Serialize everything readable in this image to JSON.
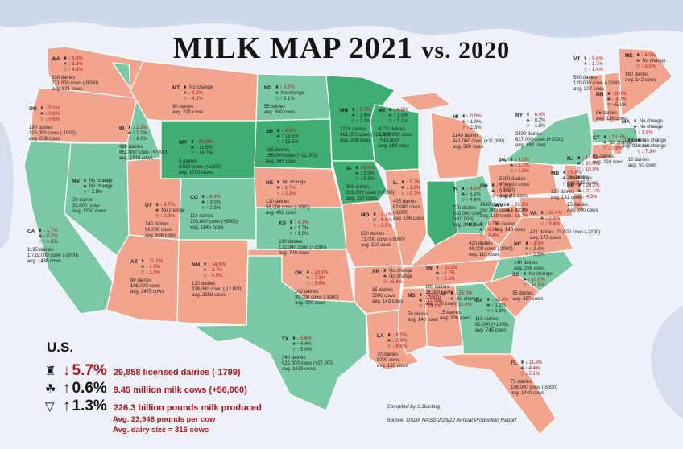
{
  "title": "MILK MAP 2021",
  "title_vs": "vs. 2020",
  "colors": {
    "decrease": "#f2a58e",
    "increase": "#7ac9a4",
    "increase_strong": "#3fad74",
    "background": "#f2f5fa"
  },
  "icon_names": [
    "dairy-barn-icon",
    "cow-icon",
    "milk-jug-icon"
  ],
  "us": {
    "heading": "U.S.",
    "dairies_pct": "5.7%",
    "dairies_text": "29,858 licensed dairies (-1799)",
    "cows_pct": "0.6%",
    "cows_text": "9.45 million milk cows (+56,000)",
    "milk_pct": "1.3%",
    "milk_text": "226.3 billion pounds milk produced",
    "per_cow": "Avg. 23,948 pounds per cow",
    "dairy_size": "Avg. dairy size = 316 cows"
  },
  "credit": "Compiled by S.Bunting",
  "source": "Source: USDA NASS 2/23/22  Annual Production Report",
  "states": [
    {
      "abbr": "WA",
      "r": [
        "3.0%",
        "3.3%",
        "4.8%"
      ],
      "d": [
        "dn",
        "dn",
        "dn"
      ],
      "lines": [
        "330 dairies",
        "271,000 cows (-9000)",
        "avg. 821 cows"
      ]
    },
    {
      "abbr": "OR",
      "r": [
        "5.0%",
        "0.6%",
        "0.6%"
      ],
      "d": [
        "dn",
        "dn",
        "dn"
      ],
      "lines": [
        "190 dairies",
        "125,000 cows (-1000)",
        "avg. 658 cows"
      ]
    },
    {
      "abbr": "CA",
      "r": [
        "1.7%",
        "0.2%",
        "1.3%"
      ],
      "d": [
        "dn",
        "dn",
        "up"
      ],
      "lines": [
        "1195 dairies",
        "1,719,000 cows (-3000)",
        "avg. 1438 cows"
      ]
    },
    {
      "abbr": "NV",
      "r": [
        "No change",
        "No change",
        "2.8%"
      ],
      "d": [
        "up",
        "up",
        "up"
      ],
      "lines": [
        "20 dairies",
        "33,000 cows",
        "avg. 1550 cows"
      ]
    },
    {
      "abbr": "ID",
      "r": [
        "2.3%",
        "1.1%",
        "1.1%"
      ],
      "d": [
        "dn",
        "up",
        "up"
      ],
      "lines": [
        "430 dairies",
        "652,000 cows (+7000)",
        "avg. 1516 cows"
      ]
    },
    {
      "abbr": "MT",
      "r": [
        "No change",
        "6.3%",
        "4.3%"
      ],
      "d": [
        "up",
        "dn",
        "dn"
      ],
      "lines": [
        "90 dairies",
        "avg. 220 cows"
      ]
    },
    {
      "abbr": "WY",
      "r": [
        "50.0%",
        "11.8%",
        "16.7%"
      ],
      "d": [
        "dn",
        "up",
        "up"
      ],
      "lines": [
        "5 dairies",
        "8,500 cows (+1000)",
        "avg. 1700 cows"
      ]
    },
    {
      "abbr": "UT",
      "r": [
        "6.7%",
        "No change",
        "0.3%"
      ],
      "d": [
        "dn",
        "up",
        "dn"
      ],
      "lines": [
        "140 dairies",
        "96,000 cows",
        "avg. 686 cows"
      ]
    },
    {
      "abbr": "CO",
      "r": [
        "8.4%",
        "3.0%",
        "2.3%"
      ],
      "d": [
        "dn",
        "up",
        "up"
      ],
      "lines": [
        "110 dairies",
        "203,000 cows (+6000)",
        "avg. 1845 cows"
      ]
    },
    {
      "abbr": "AZ",
      "r": [
        "11.2%",
        "1.0%",
        "1.5%"
      ],
      "d": [
        "dn",
        "dn",
        "dn"
      ],
      "lines": [
        "80 dairies",
        "196,000 cows",
        "avg. 2475 cows"
      ]
    },
    {
      "abbr": "NM",
      "r": [
        "14.3%",
        "3.7%",
        "4.5%"
      ],
      "d": [
        "dn",
        "dn",
        "dn"
      ],
      "lines": [
        "120 dairies",
        "318,000 cows (-12,000)",
        "avg. 2650 cows"
      ]
    },
    {
      "abbr": "ND",
      "r": [
        "8.7%",
        "No change",
        "3.1%"
      ],
      "d": [
        "dn",
        "up",
        "up"
      ],
      "lines": [
        "55 dairies",
        "avg. 300 cows"
      ]
    },
    {
      "abbr": "SD",
      "r": [
        "8.3%",
        "13.5%",
        "15.5%"
      ],
      "d": [
        "dn",
        "up",
        "up"
      ],
      "lines": [
        "165 dairies",
        "156,000 cows (+21,000)",
        "avg. 945 cows"
      ]
    },
    {
      "abbr": "NE",
      "r": [
        "No change",
        "1.7%",
        "2.3%"
      ],
      "d": [
        "up",
        "dn",
        "dn"
      ],
      "lines": [
        "120 dairies",
        "58,000 cows (-1000)",
        "avg. 483 cows"
      ]
    },
    {
      "abbr": "KS",
      "r": [
        "4.2%",
        "1.2%",
        "1.9%"
      ],
      "d": [
        "dn",
        "up",
        "up"
      ],
      "lines": [
        "230 dairies",
        "172,000 cows (+2000)",
        "avg. 748 cows"
      ]
    },
    {
      "abbr": "OK",
      "r": [
        "23.1%",
        "7.2%",
        "5.6%"
      ],
      "d": [
        "dn",
        "dn",
        "dn"
      ],
      "lines": [
        "100 dairies",
        "39,000 cows (-3000)",
        "avg. 390 cows"
      ]
    },
    {
      "abbr": "TX",
      "r": [
        "5.6%",
        "4.4%",
        "5.0%"
      ],
      "d": [
        "dn",
        "up",
        "up"
      ],
      "lines": [
        "340 dairies",
        "622,000 cows (+27,000)",
        "avg. 1829 cows"
      ]
    },
    {
      "abbr": "MN",
      "r": [
        "5.7%",
        "2.6%",
        "3.7%"
      ],
      "d": [
        "dn",
        "up",
        "up"
      ],
      "lines": [
        "2215 dairies",
        "461,000 cows (+13,000)",
        "avg. 208 cows"
      ]
    },
    {
      "abbr": "IA",
      "r": [
        "8.0%",
        "3.5%",
        "3.1%"
      ],
      "d": [
        "dn",
        "up",
        "up"
      ],
      "lines": [
        "880 dairies",
        "226,000 cows (+8000)",
        "avg. 257 cows"
      ]
    },
    {
      "abbr": "MO",
      "r": [
        "9.7%",
        "6.6%",
        "6.9%"
      ],
      "d": [
        "dn",
        "dn",
        "dn"
      ],
      "lines": [
        "650 dairies",
        "71,000 cows (-5000)",
        "avg. 110 cows"
      ]
    },
    {
      "abbr": "AR",
      "r": [
        "No change",
        "No change",
        "6.3%"
      ],
      "d": [
        "up",
        "up",
        "dn"
      ],
      "lines": [
        "35 dairies",
        "5000 cows",
        "avg. 143 cows"
      ]
    },
    {
      "abbr": "LA",
      "r": [
        "6.7%",
        "0.9%",
        "6.6%"
      ],
      "d": [
        "dn",
        "dn",
        "dn"
      ],
      "lines": [
        "70 dairies",
        "9000 cows",
        "avg. 130 cows"
      ]
    },
    {
      "abbr": "WI",
      "r": [
        "4.8%",
        "1.2%",
        "3.1%"
      ],
      "d": [
        "dn",
        "up",
        "up"
      ],
      "lines": [
        "6770 dairies",
        "1,274,000 cows",
        "(+15,000)",
        "avg. 188 cows"
      ]
    },
    {
      "abbr": "IL",
      "r": [
        "5.7%",
        "1.2%",
        "0.7%"
      ],
      "d": [
        "dn",
        "dn",
        "dn"
      ],
      "lines": [
        "405 dairies",
        "82,000 cows",
        "(-1000)",
        "avg. 166 cows"
      ]
    },
    {
      "abbr": "MI",
      "r": [
        "5.0%",
        "1.0%",
        "2.3%"
      ],
      "d": [
        "dn",
        "up",
        "up"
      ],
      "lines": [
        "1140 dairies",
        "441,000 cows (+11,000)",
        "avg. 389 cows"
      ]
    },
    {
      "abbr": "IN",
      "r": [
        "4.3%",
        "5.2%",
        "4.6%"
      ],
      "d": [
        "dn",
        "up",
        "up"
      ],
      "lines": [
        "770 dairies",
        "192,000 cows",
        "(+10,000)",
        "avg. 249 cows"
      ]
    },
    {
      "abbr": "OH",
      "r": [
        "7.2%",
        "1.2%",
        "0.4%"
      ],
      "d": [
        "dn",
        "dn",
        "up"
      ],
      "lines": [
        "1620 dairies",
        "257,000 cows (-3000)",
        "avg. 159 cows"
      ]
    },
    {
      "abbr": "KY",
      "r": [
        "5.7%",
        "4.2%",
        "3.4%"
      ],
      "d": [
        "dn",
        "dn",
        "dn"
      ],
      "lines": [
        "420 dairies",
        "46,000 cows (-2000)",
        "avg. 110 cows"
      ]
    },
    {
      "abbr": "TN",
      "r": [
        "11.1%",
        "6.7%",
        "6.3%"
      ],
      "d": [
        "dn",
        "dn",
        "dn"
      ],
      "lines": [
        "160 dairies",
        "28,000 cows",
        "(-2000)",
        "avg. 175 cows"
      ]
    },
    {
      "abbr": "MS",
      "r": [
        "9.1%",
        "12.5%",
        "19.1%"
      ],
      "d": [
        "dn",
        "dn",
        "dn"
      ],
      "lines": [
        "50 dairies",
        "avg. 140 cows"
      ]
    },
    {
      "abbr": "AL",
      "r": [
        "25.0%",
        "No change",
        "11.4%"
      ],
      "d": [
        "dn",
        "up",
        "dn"
      ],
      "lines": [
        "15 dairies",
        "avg. 300 cows"
      ]
    },
    {
      "abbr": "GA",
      "r": [
        "15.4%",
        "1.2%",
        "1.8%"
      ],
      "d": [
        "dn",
        "up",
        "up"
      ],
      "lines": [
        "110 dairies",
        "82,000 (+1000)",
        "avg. 745 cows"
      ]
    },
    {
      "abbr": "FL",
      "r": [
        "11.8%",
        "4.4%",
        "5.1%"
      ],
      "d": [
        "dn",
        "dn",
        "dn"
      ],
      "lines": [
        "75 dairies",
        "108,000 cows (-5000)",
        "avg. 1440 cows"
      ]
    },
    {
      "abbr": "SC",
      "r": [
        "No change",
        "10.0%",
        "14.5%"
      ],
      "d": [
        "up",
        "dn",
        "dn"
      ],
      "lines": [
        "35 dairies",
        "avg. 257 cows"
      ]
    },
    {
      "abbr": "NC",
      "r": [
        "3.5%",
        "2.4%",
        "2.5%"
      ],
      "d": [
        "dn",
        "up",
        "up"
      ],
      "lines": [
        "140 dairies",
        "avg. 285 cows"
      ]
    },
    {
      "abbr": "VA",
      "r": [
        "11.4%",
        "2.3%",
        "3.4%"
      ],
      "d": [
        "dn",
        "dn",
        "dn"
      ],
      "lines": [
        "421 dairies, 73,000 cows (-2000)",
        "avg. 173 cows"
      ]
    },
    {
      "abbr": "WV",
      "r": [
        "23.2%",
        "12.7%",
        "16.7%"
      ],
      "d": [
        "dn",
        "dn",
        "dn"
      ],
      "lines": [
        "35 dairies",
        "avg. 143 cows"
      ]
    },
    {
      "abbr": "PA",
      "r": [
        "4.3%",
        "1.7%",
        "1.6%"
      ],
      "d": [
        "dn",
        "dn",
        "dn"
      ],
      "lines": [
        "5200 dairies",
        "474,000 cows",
        "(-8000)",
        "avg. 91 cows"
      ]
    },
    {
      "abbr": "NY",
      "r": [
        "6.0%",
        "0.2%",
        "1.6%"
      ],
      "d": [
        "dn",
        "up",
        "up"
      ],
      "lines": [
        "3430 dairies",
        "627,000 cows (+1000)",
        "avg. 183 cows"
      ]
    },
    {
      "abbr": "MD",
      "r": [
        "5.6%",
        "No change",
        "0.7%"
      ],
      "d": [
        "dn",
        "up",
        "dn"
      ],
      "lines": [
        "320 dairies",
        "avg. 131 cows"
      ]
    },
    {
      "abbr": "DE",
      "r": [
        "26.2%",
        "21.1%",
        "4.3%"
      ],
      "d": [
        "dn",
        "dn",
        "dn"
      ],
      "lines": [
        "15 dairies",
        "avg. 200 cows"
      ]
    },
    {
      "abbr": "NJ",
      "r": [
        "12.5%",
        "20.0%",
        "10.9%"
      ],
      "d": [
        "dn",
        "dn",
        "dn"
      ],
      "lines": [
        "35 dairies",
        "avg. 115 cows"
      ]
    },
    {
      "abbr": "CT",
      "r": [
        "10.5%",
        "No change",
        "0.9%"
      ],
      "d": [
        "dn",
        "up",
        "dn"
      ],
      "lines": [
        "85 dairies",
        "avg. 224 cows"
      ]
    },
    {
      "abbr": "RI",
      "r": [
        "No change",
        "No change",
        "7.3%"
      ],
      "d": [
        "up",
        "up",
        "dn"
      ],
      "lines": [
        "10 dairies",
        "avg. 50 cows"
      ]
    },
    {
      "abbr": "MA",
      "r": [
        "No change",
        "No change",
        "1.5%"
      ],
      "d": [
        "up",
        "up",
        "dn"
      ],
      "lines": [
        "110 dairies",
        "avg. 91 cows"
      ]
    },
    {
      "abbr": "VT",
      "r": [
        "9.4%",
        "1.7%",
        "1.4%"
      ],
      "d": [
        "dn",
        "dn",
        "dn"
      ],
      "lines": [
        "580 dairies",
        "120,000 cows (-2000)",
        "avg. 207 cows"
      ]
    },
    {
      "abbr": "NH",
      "r": [
        "8.0%",
        "4.2%",
        "5.1%"
      ],
      "d": [
        "dn",
        "dn",
        "up"
      ],
      "lines": [
        "95 dairies",
        "avg. 116 cows"
      ]
    },
    {
      "abbr": "ME",
      "r": [
        "4.0%",
        "No change",
        "3.5%"
      ],
      "d": [
        "dn",
        "up",
        "dn"
      ],
      "lines": [
        "190 dairies",
        "avg. 142 cows"
      ]
    }
  ]
}
